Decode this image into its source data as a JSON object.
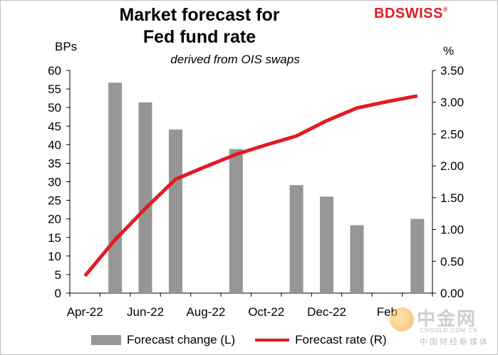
{
  "chart_data": {
    "type": "bar+line",
    "title_line1": "Market forecast for",
    "title_line2": "Fed fund rate",
    "subtitle": "derived from OIS swaps",
    "left_axis_unit": "BPs",
    "right_axis_unit": "%",
    "left_ticks": [
      "60",
      "55",
      "50",
      "45",
      "40",
      "35",
      "30",
      "25",
      "20",
      "15",
      "10",
      "5",
      "0"
    ],
    "right_ticks": [
      "3.50",
      "3.00",
      "2.50",
      "2.00",
      "1.50",
      "1.00",
      "0.50",
      "0.00"
    ],
    "x_ticks": [
      "Apr-22",
      "Jun-22",
      "Aug-22",
      "Oct-22",
      "Dec-22",
      "Feb"
    ],
    "ylim_left": [
      0,
      60
    ],
    "ylim_right": [
      0,
      3.5
    ],
    "bars": {
      "name": "Forecast change (L)",
      "points": [
        {
          "x": 1,
          "value": 56.7
        },
        {
          "x": 2,
          "value": 51.4
        },
        {
          "x": 3,
          "value": 44.1
        },
        {
          "x": 5,
          "value": 38.8
        },
        {
          "x": 7,
          "value": 29.1
        },
        {
          "x": 8,
          "value": 26.0
        },
        {
          "x": 9,
          "value": 18.3
        },
        {
          "x": 11,
          "value": 20.0
        }
      ]
    },
    "line": {
      "name": "Forecast rate (R)",
      "points": [
        {
          "x": 0,
          "value": 0.27
        },
        {
          "x": 1,
          "value": 0.84
        },
        {
          "x": 2,
          "value": 1.33
        },
        {
          "x": 3,
          "value": 1.79
        },
        {
          "x": 4,
          "value": 1.99
        },
        {
          "x": 5,
          "value": 2.18
        },
        {
          "x": 6,
          "value": 2.33
        },
        {
          "x": 7,
          "value": 2.47
        },
        {
          "x": 8,
          "value": 2.71
        },
        {
          "x": 9,
          "value": 2.91
        },
        {
          "x": 10,
          "value": 3.01
        },
        {
          "x": 11,
          "value": 3.1
        }
      ]
    },
    "x_domain": [
      0,
      11
    ],
    "tick_every": 2,
    "colors": {
      "bar": "#969696",
      "line": "#e31b23"
    }
  },
  "brand": {
    "name_part1": "BD",
    "name_part2": "SWISS",
    "mark": "®"
  },
  "legend": {
    "bar_label": "Forecast change (L)",
    "line_label": "Forecast rate (R)"
  },
  "watermark": {
    "text": "中金网",
    "url": "CNGOLD.COM.CN",
    "sub": "中国财经新媒体"
  }
}
